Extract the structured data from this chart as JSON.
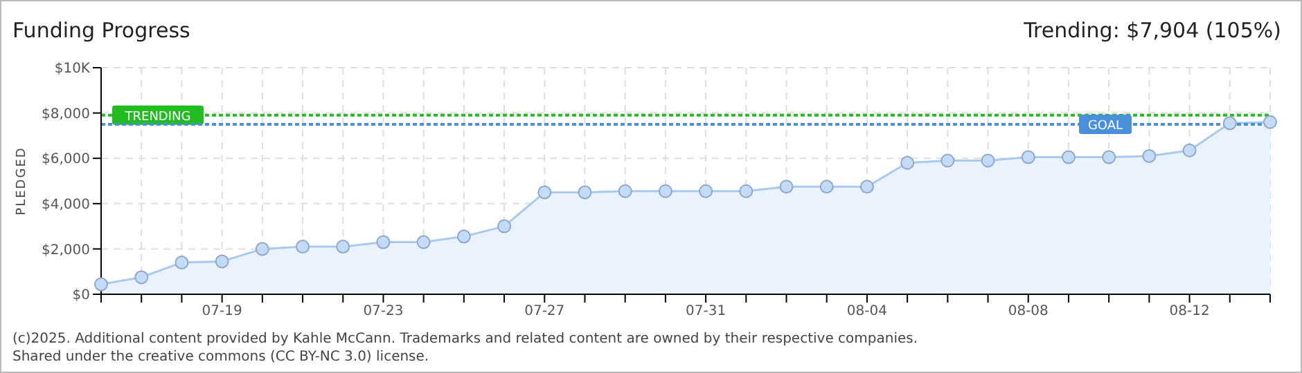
{
  "chart_data": {
    "type": "area",
    "title": "Funding Progress",
    "ylabel": "PLEDGED",
    "annotations": [
      "Trending: $7,904 (105%)",
      "(c)2025. Additional content provided by Kahle McCann. Trademarks and related content are owned by their respective companies.",
      "Shared under the creative commons (CC BY-NC 3.0) license."
    ],
    "categories": [
      null,
      null,
      null,
      "07-19",
      null,
      null,
      null,
      "07-23",
      null,
      null,
      null,
      "07-27",
      null,
      null,
      null,
      "07-31",
      null,
      null,
      null,
      "08-04",
      null,
      null,
      null,
      "08-08",
      null,
      null,
      null,
      "08-12",
      null,
      null
    ],
    "series": [
      {
        "color": "#a9c9ee",
        "values": [
          440,
          750,
          1400,
          1450,
          2000,
          2100,
          2100,
          2300,
          2300,
          2550,
          3000,
          4500,
          4500,
          4550,
          4550,
          4550,
          4550,
          4750,
          4750,
          4750,
          5800,
          5900,
          5900,
          6050,
          6050,
          6050,
          6100,
          6350,
          7550,
          7600
        ]
      }
    ],
    "ylim": [
      0,
      10000
    ],
    "yticks": [
      {
        "value": 0,
        "label": "$0"
      },
      {
        "value": 2000,
        "label": "$2,000"
      },
      {
        "value": 4000,
        "label": "$4,000"
      },
      {
        "value": 6000,
        "label": "$6,000"
      },
      {
        "value": 8000,
        "label": "$8,000"
      },
      {
        "value": 10000,
        "label": "$10K"
      }
    ],
    "ref_lines": [
      {
        "axis": "y",
        "value": 7904,
        "label": "TRENDING",
        "color": "#22bb22",
        "line_style": "dotted"
      },
      {
        "axis": "y",
        "value": 7500,
        "label": "GOAL",
        "color": "#4a8fd9",
        "line_style": "dotted"
      }
    ],
    "grid": true,
    "marker": "circle"
  }
}
